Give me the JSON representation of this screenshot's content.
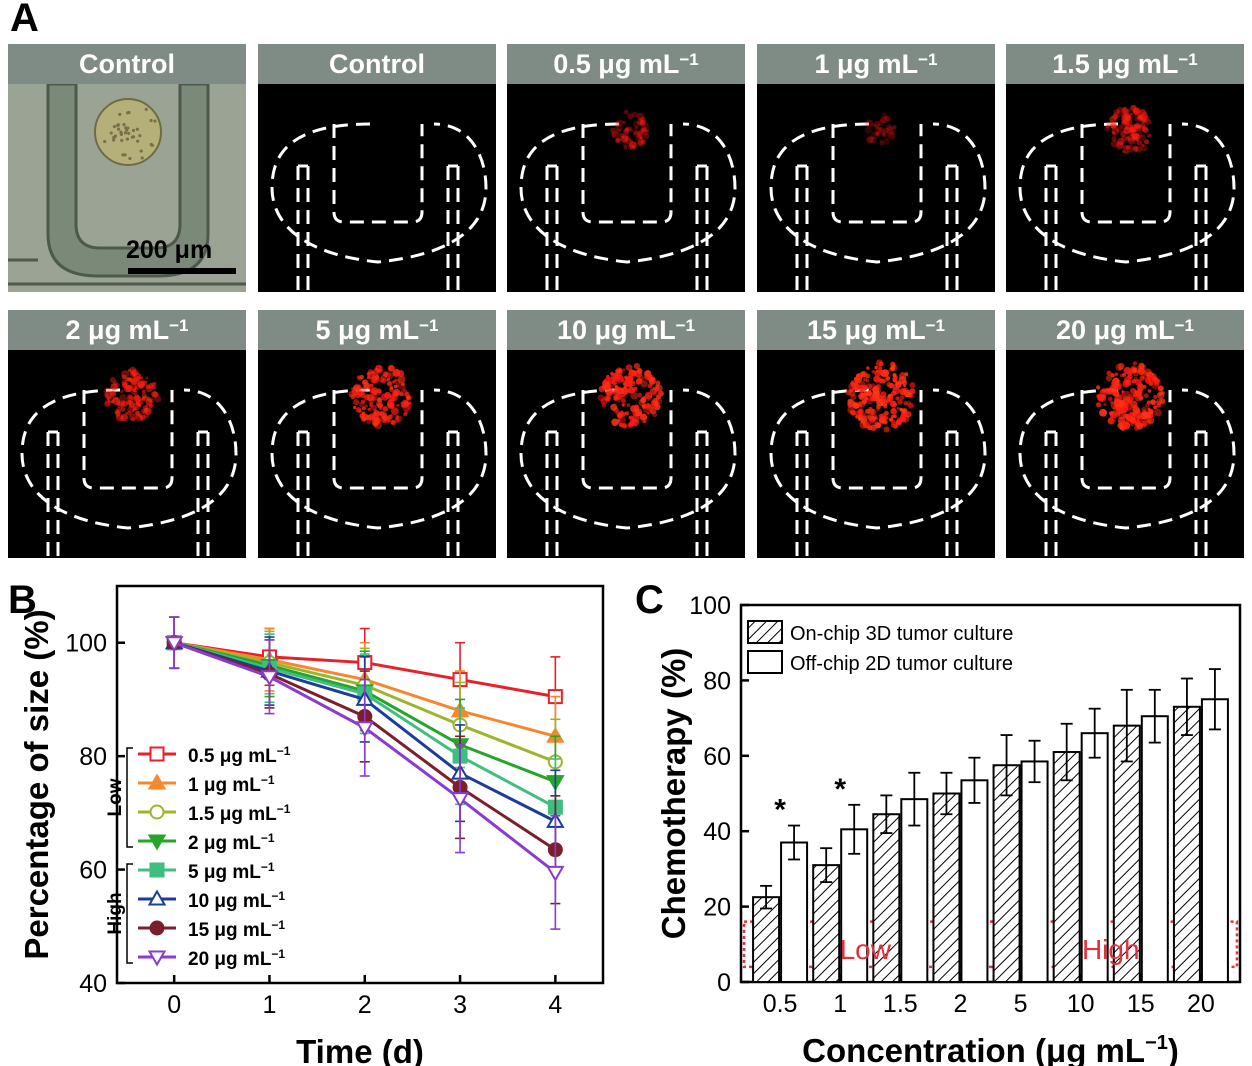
{
  "panels": {
    "a": "A",
    "b": "B",
    "c": "C"
  },
  "panel_a": {
    "scale_bar_label": "200 μm",
    "tiles": [
      {
        "label": "Control",
        "sup": "",
        "kind": "micrograph",
        "intensity": 0
      },
      {
        "label": "Control",
        "sup": "",
        "kind": "fluorescence",
        "intensity": 0
      },
      {
        "label": "0.5 μg mL",
        "sup": "−1",
        "kind": "fluorescence",
        "intensity": 0.25
      },
      {
        "label": "1 μg mL",
        "sup": "−1",
        "kind": "fluorescence",
        "intensity": 0.08
      },
      {
        "label": "1.5 μg mL",
        "sup": "−1",
        "kind": "fluorescence",
        "intensity": 0.45
      },
      {
        "label": "2 μg mL",
        "sup": "−1",
        "kind": "fluorescence",
        "intensity": 0.6
      },
      {
        "label": "5 μg mL",
        "sup": "−1",
        "kind": "fluorescence",
        "intensity": 0.8
      },
      {
        "label": "10 μg mL",
        "sup": "−1",
        "kind": "fluorescence",
        "intensity": 0.85
      },
      {
        "label": "15 μg mL",
        "sup": "−1",
        "kind": "fluorescence",
        "intensity": 1.0
      },
      {
        "label": "20 μg mL",
        "sup": "−1",
        "kind": "fluorescence",
        "intensity": 0.95
      }
    ]
  },
  "chart_data": [
    {
      "type": "line",
      "xlabel": "Time (d)",
      "ylabel": "Percentage of size (%)",
      "x": [
        0,
        1,
        2,
        3,
        4
      ],
      "xlim": [
        -0.6,
        4.5
      ],
      "ylim": [
        40,
        110
      ],
      "yticks": [
        40,
        60,
        80,
        100
      ],
      "group_labels": [
        "Low",
        "High"
      ],
      "series": [
        {
          "name": "0.5 μg mL",
          "sup": "−1",
          "color": "#e8202a",
          "marker": "square-open",
          "values": [
            100,
            97.5,
            96.5,
            93.5,
            90.5
          ],
          "errors": [
            4.5,
            5,
            6,
            6.5,
            7
          ]
        },
        {
          "name": "1 μg mL",
          "sup": "−1",
          "color": "#f5882e",
          "marker": "triangle-filled",
          "values": [
            100,
            97,
            93.5,
            88,
            83.5
          ],
          "errors": [
            4.5,
            5.5,
            6.5,
            7,
            7
          ]
        },
        {
          "name": "1.5 μg mL",
          "sup": "−1",
          "color": "#9db52c",
          "marker": "circle-open",
          "values": [
            100,
            96.5,
            92.5,
            85.5,
            79
          ],
          "errors": [
            4.5,
            5.5,
            6.5,
            7.5,
            7.5
          ]
        },
        {
          "name": "2 μg mL",
          "sup": "−1",
          "color": "#27a52a",
          "marker": "triangle-down-filled",
          "values": [
            100,
            96,
            91.5,
            82,
            75.5
          ],
          "errors": [
            4.5,
            5.5,
            7,
            8,
            8
          ]
        },
        {
          "name": "5 μg mL",
          "sup": "−1",
          "color": "#3fbf7f",
          "marker": "square-filled",
          "values": [
            100,
            95.5,
            91,
            80,
            71
          ],
          "errors": [
            4.5,
            6,
            7,
            8.5,
            8.5
          ]
        },
        {
          "name": "10 μg mL",
          "sup": "−1",
          "color": "#1c3c99",
          "marker": "triangle-open",
          "values": [
            100,
            95,
            90,
            77,
            68.5
          ],
          "errors": [
            4.5,
            6,
            7.5,
            8.5,
            9
          ]
        },
        {
          "name": "15 μg mL",
          "sup": "−1",
          "color": "#7a1f2b",
          "marker": "circle-filled",
          "values": [
            100,
            94.5,
            87,
            74.5,
            63.5
          ],
          "errors": [
            4.5,
            6,
            8,
            9,
            9.5
          ]
        },
        {
          "name": "20 μg mL",
          "sup": "−1",
          "color": "#8a3bd0",
          "marker": "triangle-down-open",
          "values": [
            100,
            94,
            85,
            72.5,
            59.5
          ],
          "errors": [
            4.5,
            6.5,
            8.5,
            9.5,
            10
          ]
        }
      ]
    },
    {
      "type": "bar",
      "xlabel": "Concentration (μg mL",
      "xlabel_sup": "−1",
      "xlabel_end": ")",
      "ylabel": "Chemotherapy (%)",
      "categories": [
        "0.5",
        "1",
        "1.5",
        "2",
        "5",
        "10",
        "15",
        "20"
      ],
      "ylim": [
        0,
        100
      ],
      "yticks": [
        0,
        20,
        40,
        60,
        80,
        100
      ],
      "series": [
        {
          "name": "On-chip 3D tumor culture",
          "pattern": "hatch",
          "values": [
            22.5,
            31,
            44.5,
            50,
            57.5,
            61,
            68,
            73
          ],
          "errors": [
            3,
            4.5,
            5,
            5.5,
            8,
            7.5,
            9.5,
            7.5
          ]
        },
        {
          "name": "Off-chip 2D tumor culture",
          "pattern": "open",
          "values": [
            37,
            40.5,
            48.5,
            53.5,
            58.5,
            66,
            70.5,
            75
          ],
          "errors": [
            4.5,
            6.5,
            7,
            6,
            5.5,
            6.5,
            7,
            8
          ]
        }
      ],
      "significance": [
        "*",
        "*"
      ],
      "group_labels": [
        "Low",
        "High"
      ]
    }
  ]
}
